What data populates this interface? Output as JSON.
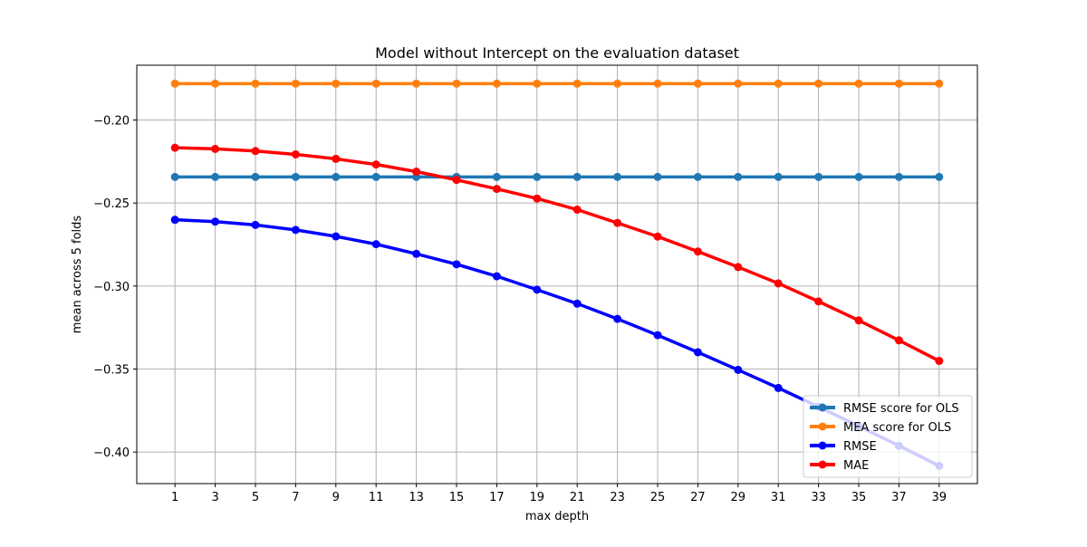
{
  "chart_data": {
    "type": "line",
    "title": "Model without Intercept on the evaluation dataset",
    "xlabel": "max depth",
    "ylabel": "mean across 5 folds",
    "x": [
      1,
      3,
      5,
      7,
      9,
      11,
      13,
      15,
      17,
      19,
      21,
      23,
      25,
      27,
      29,
      31,
      33,
      35,
      37,
      39
    ],
    "xticks": [
      "1",
      "3",
      "5",
      "7",
      "9",
      "11",
      "13",
      "15",
      "17",
      "19",
      "21",
      "23",
      "25",
      "27",
      "29",
      "31",
      "33",
      "35",
      "37",
      "39"
    ],
    "xlim": [
      -0.9,
      40.9
    ],
    "ylim": [
      -0.419,
      -0.167
    ],
    "yticks": [
      "−0.20",
      "−0.25",
      "−0.30",
      "−0.35",
      "−0.40"
    ],
    "ytick_values": [
      -0.2,
      -0.25,
      -0.3,
      -0.35,
      -0.4
    ],
    "grid": true,
    "legend_position": "lower right",
    "series": [
      {
        "name": "RMSE score for OLS",
        "color": "#1f77b4",
        "values": [
          -0.2343,
          -0.2343,
          -0.2343,
          -0.2343,
          -0.2343,
          -0.2343,
          -0.2343,
          -0.2343,
          -0.2343,
          -0.2343,
          -0.2343,
          -0.2343,
          -0.2343,
          -0.2343,
          -0.2343,
          -0.2343,
          -0.2343,
          -0.2343,
          -0.2343,
          -0.2343
        ]
      },
      {
        "name": "MEA score for OLS",
        "color": "#ff7f0e",
        "values": [
          -0.1781,
          -0.1781,
          -0.1781,
          -0.1781,
          -0.1781,
          -0.1781,
          -0.1781,
          -0.1781,
          -0.1781,
          -0.1781,
          -0.1781,
          -0.1781,
          -0.1781,
          -0.1781,
          -0.1781,
          -0.1781,
          -0.1781,
          -0.1781,
          -0.1781,
          -0.1781
        ]
      },
      {
        "name": "RMSE",
        "color": "#0000ff",
        "values": [
          -0.2601,
          -0.2612,
          -0.2632,
          -0.2662,
          -0.2701,
          -0.2748,
          -0.2806,
          -0.2869,
          -0.2941,
          -0.3022,
          -0.3106,
          -0.3198,
          -0.3296,
          -0.3399,
          -0.3505,
          -0.3614,
          -0.3727,
          -0.3844,
          -0.3962,
          -0.4083
        ]
      },
      {
        "name": "MAE",
        "color": "#ff0000",
        "values": [
          -0.2167,
          -0.2174,
          -0.2187,
          -0.2207,
          -0.2234,
          -0.2268,
          -0.2311,
          -0.2361,
          -0.2415,
          -0.2473,
          -0.254,
          -0.262,
          -0.2702,
          -0.2792,
          -0.2886,
          -0.2984,
          -0.3093,
          -0.3207,
          -0.3327,
          -0.3451
        ]
      }
    ]
  }
}
